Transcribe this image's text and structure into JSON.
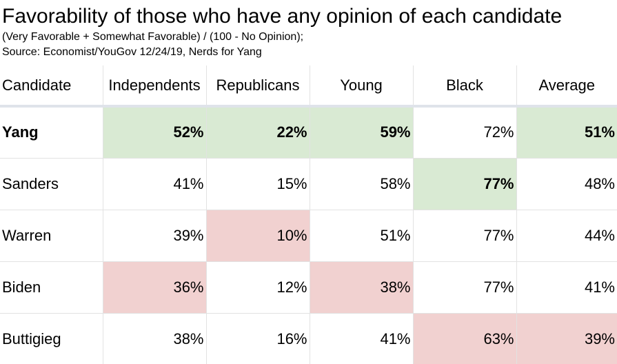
{
  "title": "Favorability of those who have any opinion of each candidate",
  "subtitle_line1": "(Very Favorable + Somewhat Favorable) / (100 - No Opinion);",
  "subtitle_line2": "Source: Economist/YouGov 12/24/19, Nerds for Yang",
  "colors": {
    "highest": "#d9ead3",
    "lowest": "#f1d1d0",
    "header_rule": "#dfe3ea",
    "grid": "#e2e2e2"
  },
  "chart_data": {
    "type": "table",
    "columns": [
      "Candidate",
      "Independents",
      "Republicans",
      "Young",
      "Black",
      "Average"
    ],
    "rows": [
      {
        "candidate": "Yang",
        "values": [
          "52%",
          "22%",
          "59%",
          "72%",
          "51%"
        ],
        "highlight": [
          "high",
          "high",
          "high",
          "",
          "high"
        ],
        "bold": [
          true,
          true,
          true,
          false,
          true
        ]
      },
      {
        "candidate": "Sanders",
        "values": [
          "41%",
          "15%",
          "58%",
          "77%",
          "48%"
        ],
        "highlight": [
          "",
          "",
          "",
          "high",
          ""
        ],
        "bold": [
          false,
          false,
          false,
          true,
          false
        ]
      },
      {
        "candidate": "Warren",
        "values": [
          "39%",
          "10%",
          "51%",
          "77%",
          "44%"
        ],
        "highlight": [
          "",
          "low",
          "",
          "",
          ""
        ],
        "bold": [
          false,
          false,
          false,
          false,
          false
        ]
      },
      {
        "candidate": "Biden",
        "values": [
          "36%",
          "12%",
          "38%",
          "77%",
          "41%"
        ],
        "highlight": [
          "low",
          "",
          "low",
          "",
          ""
        ],
        "bold": [
          false,
          false,
          false,
          false,
          false
        ]
      },
      {
        "candidate": "Buttigieg",
        "values": [
          "38%",
          "16%",
          "41%",
          "63%",
          "39%"
        ],
        "highlight": [
          "",
          "",
          "",
          "low",
          "low"
        ],
        "bold": [
          false,
          false,
          false,
          false,
          false
        ]
      }
    ]
  }
}
